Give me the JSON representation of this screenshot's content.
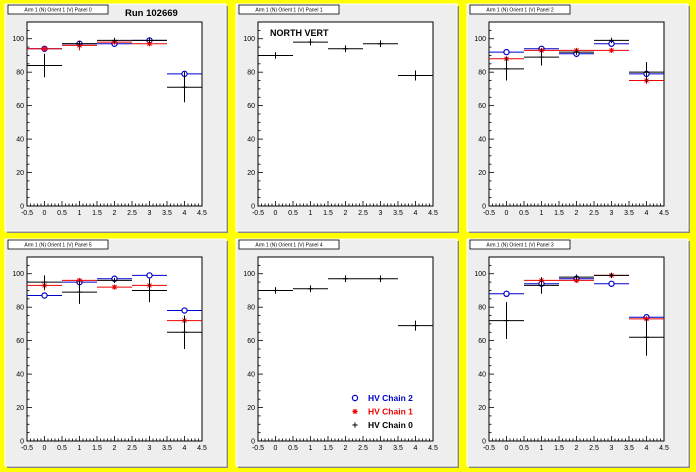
{
  "canvas": {
    "run_title": "Run 102669",
    "annotation": "NORTH VERT",
    "background_color": "#ffff00"
  },
  "colors": {
    "chain2": "#0000cc",
    "chain1": "#ee0000",
    "chain0": "#000000"
  },
  "legend": {
    "position": "bottom-right of pad 5",
    "entries": [
      {
        "label": "HV Chain 2",
        "marker": "open-circle",
        "color": "#0000cc"
      },
      {
        "label": "HV Chain 1",
        "marker": "star",
        "color": "#ee0000"
      },
      {
        "label": "HV Chain 0",
        "marker": "plus",
        "color": "#000000"
      }
    ]
  },
  "chart_data": [
    {
      "type": "scatter",
      "title": "Arm 1 (N) Orient 1 (V) Panel 0",
      "xlim": [
        -0.5,
        4.5
      ],
      "ylim": [
        0,
        110
      ],
      "xticks": [
        "-0.5",
        "0",
        "0.5",
        "1",
        "1.5",
        "2",
        "2.5",
        "3",
        "3.5",
        "4",
        "4.5"
      ],
      "yticks": [
        "0",
        "20",
        "40",
        "60",
        "80",
        "100"
      ],
      "series": [
        {
          "name": "HV Chain 2",
          "points": [
            [
              0,
              94,
              0
            ],
            [
              1,
              97,
              0
            ],
            [
              2,
              97,
              0
            ],
            [
              3,
              99,
              0
            ],
            [
              4,
              79,
              0
            ]
          ]
        },
        {
          "name": "HV Chain 1",
          "points": [
            [
              0,
              94,
              0
            ],
            [
              1,
              96,
              3
            ],
            [
              2,
              98,
              0
            ],
            [
              3,
              97,
              0
            ]
          ]
        },
        {
          "name": "HV Chain 0",
          "points": [
            [
              0,
              84,
              7
            ],
            [
              1,
              97,
              0
            ],
            [
              2,
              99,
              0
            ],
            [
              3,
              99,
              0
            ],
            [
              4,
              71,
              9
            ]
          ]
        }
      ]
    },
    {
      "type": "scatter",
      "title": "Arm 1 (N) Orient 1 (V) Panel 1",
      "xlim": [
        -0.5,
        4.5
      ],
      "ylim": [
        0,
        110
      ],
      "xticks": [
        "-0.5",
        "0",
        "0.5",
        "1",
        "1.5",
        "2",
        "2.5",
        "3",
        "3.5",
        "4",
        "4.5"
      ],
      "yticks": [
        "0",
        "20",
        "40",
        "60",
        "80",
        "100"
      ],
      "series": [
        {
          "name": "HV Chain 0",
          "points": [
            [
              0,
              90,
              2
            ],
            [
              1,
              98,
              2
            ],
            [
              2,
              94,
              2
            ],
            [
              3,
              97,
              2
            ],
            [
              4,
              78,
              3
            ]
          ]
        }
      ]
    },
    {
      "type": "scatter",
      "title": "Arm 1 (N) Orient 1 (V) Panel 2",
      "xlim": [
        -0.5,
        4.5
      ],
      "ylim": [
        0,
        110
      ],
      "xticks": [
        "-0.5",
        "0",
        "0.5",
        "1",
        "1.5",
        "2",
        "2.5",
        "3",
        "3.5",
        "4",
        "4.5"
      ],
      "yticks": [
        "0",
        "20",
        "40",
        "60",
        "80",
        "100"
      ],
      "series": [
        {
          "name": "HV Chain 2",
          "points": [
            [
              0,
              92,
              0
            ],
            [
              1,
              94,
              0
            ],
            [
              2,
              91,
              2
            ],
            [
              3,
              97,
              0
            ],
            [
              4,
              79,
              0
            ]
          ]
        },
        {
          "name": "HV Chain 1",
          "points": [
            [
              0,
              88,
              0
            ],
            [
              1,
              93,
              0
            ],
            [
              2,
              93,
              0
            ],
            [
              3,
              93,
              0
            ],
            [
              4,
              75,
              2
            ]
          ]
        },
        {
          "name": "HV Chain 0",
          "points": [
            [
              0,
              82,
              7
            ],
            [
              1,
              89,
              5
            ],
            [
              2,
              92,
              0
            ],
            [
              3,
              99,
              0
            ],
            [
              4,
              80,
              6
            ]
          ]
        }
      ]
    },
    {
      "type": "scatter",
      "title": "Arm 1 (N) Orient 1 (V) Panel 5",
      "xlim": [
        -0.5,
        4.5
      ],
      "ylim": [
        0,
        110
      ],
      "xticks": [
        "-0.5",
        "0",
        "0.5",
        "1",
        "1.5",
        "2",
        "2.5",
        "3",
        "3.5",
        "4",
        "4.5"
      ],
      "yticks": [
        "0",
        "20",
        "40",
        "60",
        "80",
        "100"
      ],
      "series": [
        {
          "name": "HV Chain 2",
          "points": [
            [
              0,
              87,
              0
            ],
            [
              1,
              95,
              0
            ],
            [
              2,
              97,
              0
            ],
            [
              3,
              99,
              0
            ],
            [
              4,
              78,
              0
            ]
          ]
        },
        {
          "name": "HV Chain 1",
          "points": [
            [
              0,
              93,
              3
            ],
            [
              1,
              96,
              0
            ],
            [
              2,
              92,
              0
            ],
            [
              3,
              93,
              0
            ],
            [
              4,
              72,
              3
            ]
          ]
        },
        {
          "name": "HV Chain 0",
          "points": [
            [
              0,
              95,
              4
            ],
            [
              1,
              89,
              7
            ],
            [
              2,
              96,
              0
            ],
            [
              3,
              90,
              7
            ],
            [
              4,
              65,
              10
            ]
          ]
        }
      ]
    },
    {
      "type": "scatter",
      "title": "Arm 1 (N) Orient 1 (V) Panel 4",
      "xlim": [
        -0.5,
        4.5
      ],
      "ylim": [
        0,
        110
      ],
      "xticks": [
        "-0.5",
        "0",
        "0.5",
        "1",
        "1.5",
        "2",
        "2.5",
        "3",
        "3.5",
        "4",
        "4.5"
      ],
      "yticks": [
        "0",
        "20",
        "40",
        "60",
        "80",
        "100"
      ],
      "series": [
        {
          "name": "HV Chain 0",
          "points": [
            [
              0,
              90,
              2
            ],
            [
              1,
              91,
              2
            ],
            [
              2,
              97,
              2
            ],
            [
              3,
              97,
              2
            ],
            [
              4,
              69,
              3
            ]
          ]
        }
      ]
    },
    {
      "type": "scatter",
      "title": "Arm 1 (N) Orient 1 (V) Panel 3",
      "xlim": [
        -0.5,
        4.5
      ],
      "ylim": [
        0,
        110
      ],
      "xticks": [
        "-0.5",
        "0",
        "0.5",
        "1",
        "1.5",
        "2",
        "2.5",
        "3",
        "3.5",
        "4",
        "4.5"
      ],
      "yticks": [
        "0",
        "20",
        "40",
        "60",
        "80",
        "100"
      ],
      "series": [
        {
          "name": "HV Chain 2",
          "points": [
            [
              0,
              88,
              0
            ],
            [
              1,
              94,
              0
            ],
            [
              2,
              97,
              0
            ],
            [
              3,
              94,
              0
            ],
            [
              4,
              74,
              0
            ]
          ]
        },
        {
          "name": "HV Chain 1",
          "points": [
            [
              1,
              96,
              0
            ],
            [
              2,
              96,
              0
            ],
            [
              3,
              99,
              0
            ],
            [
              4,
              73,
              0
            ]
          ]
        },
        {
          "name": "HV Chain 0",
          "points": [
            [
              0,
              72,
              11
            ],
            [
              1,
              93,
              5
            ],
            [
              2,
              98,
              0
            ],
            [
              3,
              99,
              0
            ],
            [
              4,
              62,
              11
            ]
          ]
        }
      ]
    }
  ]
}
